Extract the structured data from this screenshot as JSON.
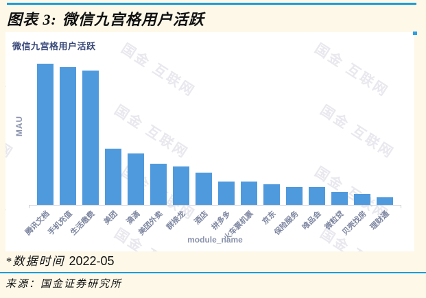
{
  "page": {
    "figure_label": "图表 3:",
    "figure_title": "微信九宫格用户活跃",
    "footnote_label": "*数据时间",
    "footnote_value": "2022-05",
    "source": "来源：国金证券研究所"
  },
  "watermark": {
    "text": "国金 互联网"
  },
  "colors": {
    "accent_rule_blue": "#1b9cd9",
    "bar_blue": "#4f99dd",
    "chart_title_navy": "#3b4a7a",
    "axis_label_gray": "#8a92ac",
    "page_background_cream": "#fdf8e8",
    "watermark_gray": "#e8e8ee"
  },
  "chart_data": {
    "type": "bar",
    "title": "微信九宫格用户活跃",
    "xlabel": "module_name",
    "ylabel": "MAU",
    "categories": [
      "腾讯文档",
      "手机充值",
      "生活缴费",
      "美团",
      "滴滴",
      "美团外卖",
      "群接龙",
      "酒店",
      "拼多多",
      "火车票机票",
      "京东",
      "保险服务",
      "唯品会",
      "微粒贷",
      "贝壳找房",
      "理财通"
    ],
    "values_relative_pct": [
      100,
      97.5,
      95,
      40,
      36.5,
      29,
      27,
      23,
      16.5,
      16.5,
      14.5,
      12.5,
      12.5,
      9,
      8,
      5.5
    ],
    "ylim": [
      0,
      100
    ],
    "y_axis_ticks_visible": false,
    "grid": false,
    "legend": false,
    "bar_color": "#4f99dd"
  }
}
